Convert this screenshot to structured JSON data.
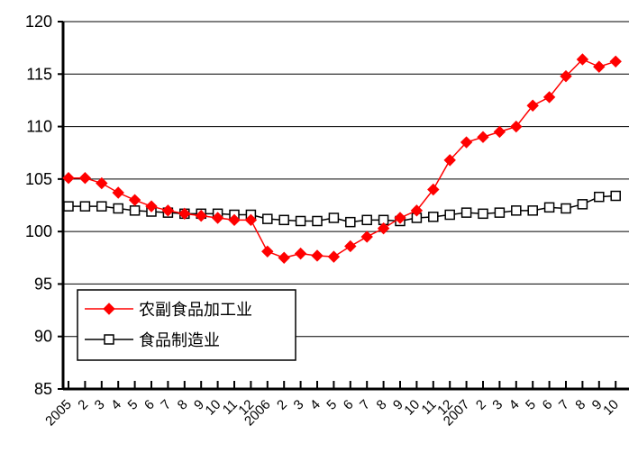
{
  "chart_data": {
    "type": "line",
    "title": "",
    "xlabel": "",
    "ylabel": "",
    "ylim": [
      85,
      120
    ],
    "yticks": [
      85,
      90,
      95,
      100,
      105,
      110,
      115,
      120
    ],
    "grid": "horizontal",
    "legend_position": "bottom-left",
    "categories": [
      "2005",
      "2",
      "3",
      "4",
      "5",
      "6",
      "7",
      "8",
      "9",
      "10",
      "11",
      "12",
      "2006",
      "2",
      "3",
      "4",
      "5",
      "6",
      "7",
      "8",
      "9",
      "10",
      "11",
      "12",
      "2007",
      "2",
      "3",
      "4",
      "5",
      "6",
      "7",
      "8",
      "9",
      "10"
    ],
    "series": [
      {
        "name": "农副食品加工业",
        "color": "#ff0000",
        "marker": "diamond",
        "values": [
          105.1,
          105.1,
          104.6,
          103.7,
          103.0,
          102.4,
          102.0,
          101.7,
          101.5,
          101.3,
          101.1,
          101.1,
          98.1,
          97.5,
          97.9,
          97.7,
          97.6,
          98.6,
          99.5,
          100.3,
          101.3,
          102.0,
          104.0,
          106.8,
          108.5,
          109.0,
          109.5,
          110.0,
          112.0,
          112.8,
          114.8,
          116.4,
          115.7,
          116.2
        ]
      },
      {
        "name": "食品制造业",
        "color": "#000000",
        "marker": "square",
        "values": [
          102.4,
          102.4,
          102.4,
          102.2,
          102.0,
          101.9,
          101.8,
          101.7,
          101.7,
          101.7,
          101.6,
          101.6,
          101.2,
          101.1,
          101.0,
          101.0,
          101.3,
          100.9,
          101.1,
          101.1,
          101.0,
          101.3,
          101.4,
          101.6,
          101.8,
          101.7,
          101.8,
          102.0,
          102.0,
          102.3,
          102.2,
          102.6,
          103.3,
          103.4
        ]
      }
    ]
  }
}
